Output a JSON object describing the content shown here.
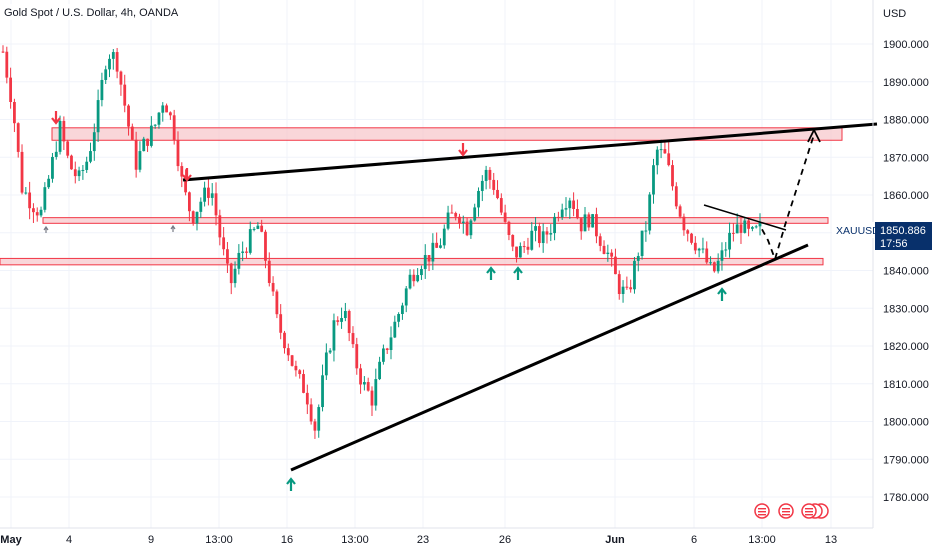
{
  "header": {
    "symbol_title": "Gold Spot / U.S. Dollar, 4h, OANDA"
  },
  "price_axis": {
    "currency": "USD",
    "ticks": [
      "1900.000",
      "1890.000",
      "1880.000",
      "1870.000",
      "1860.000",
      "1850.000",
      "1840.000",
      "1830.000",
      "1820.000",
      "1810.000",
      "1800.000",
      "1790.000",
      "1780.000"
    ]
  },
  "time_axis": {
    "ticks": [
      "May",
      "4",
      "9",
      "13:00",
      "16",
      "13:00",
      "23",
      "26",
      "Jun",
      "6",
      "13:00",
      "13"
    ]
  },
  "last_price": {
    "symbol": "XAUUSD",
    "price": "1850.886",
    "countdown": "17:56"
  },
  "colors": {
    "up": "#089981",
    "down": "#f23645",
    "zone_fill": "#f7c8cc",
    "zone_border": "#f23645",
    "trendline": "#000000",
    "price_label_bg": "#08306b"
  },
  "chart_data": {
    "type": "candlestick",
    "title": "Gold Spot / U.S. Dollar, 4h, OANDA",
    "ylabel": "USD",
    "ylim": [
      1776,
      1904
    ],
    "close_path": [
      1898,
      1884,
      1862,
      1858,
      1855,
      1866,
      1878,
      1868,
      1864,
      1870,
      1882,
      1898,
      1896,
      1882,
      1868,
      1874,
      1878,
      1886,
      1878,
      1862,
      1854,
      1859,
      1862,
      1848,
      1836,
      1844,
      1848,
      1852,
      1840,
      1826,
      1820,
      1812,
      1808,
      1798,
      1814,
      1826,
      1830,
      1818,
      1810,
      1806,
      1816,
      1823,
      1830,
      1838,
      1842,
      1844,
      1846,
      1853,
      1856,
      1851,
      1860,
      1866,
      1862,
      1852,
      1844,
      1846,
      1850,
      1848,
      1852,
      1858,
      1860,
      1852,
      1854,
      1849,
      1844,
      1836,
      1833,
      1844,
      1852,
      1872,
      1870,
      1860,
      1852,
      1848,
      1844,
      1839,
      1844,
      1850,
      1852,
      1849,
      1851
    ],
    "zones": [
      {
        "low": 1874.5,
        "high": 1877.8
      },
      {
        "low": 1852.5,
        "high": 1854.0
      },
      {
        "low": 1841.5,
        "high": 1843.2
      }
    ],
    "trendlines": [
      {
        "from": {
          "date": "May 10",
          "price": 1863.5
        },
        "to": {
          "date": "Jun 12",
          "price": 1878
        }
      },
      {
        "from": {
          "date": "May 16",
          "price": 1787
        },
        "to": {
          "date": "Jun 12",
          "price": 1847
        }
      }
    ],
    "projection": [
      1850.9,
      1848,
      1843,
      1852,
      1876
    ],
    "signals": {
      "down_arrows": [
        "May 3",
        "May 10",
        "May 23",
        "Jun 3"
      ],
      "up_arrows": [
        "May 16",
        "May 24",
        "May 26",
        "Jun 7"
      ]
    }
  }
}
